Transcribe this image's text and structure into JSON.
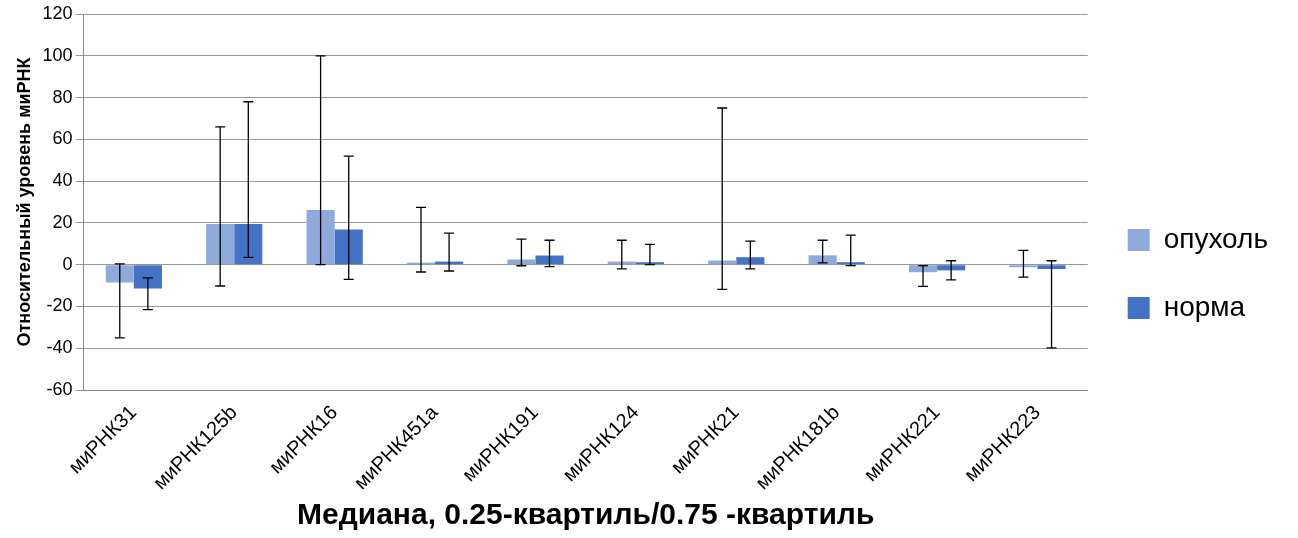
{
  "chart_data": {
    "type": "bar",
    "xlabel": "Медиана, 0.25-квартиль/0.75 -квартиль",
    "ylabel": "Относительный уровень миРНК",
    "categories": [
      "миРНК31",
      "миРНК125b",
      "миРНК16",
      "миРНК451a",
      "миРНК191",
      "миРНК124",
      "миРНК21",
      "миРНК181b",
      "миРНК221",
      "миРНК223"
    ],
    "series": [
      {
        "name": "опухоль",
        "color": "#8eaadb",
        "values": [
          -8.5,
          19.5,
          26.2,
          1.0,
          2.5,
          1.5,
          2.0,
          4.5,
          -3.6,
          -1.2
        ],
        "errors": [
          [
            -35,
            0.4
          ],
          [
            -10.2,
            66
          ],
          [
            0,
            100
          ],
          [
            -3.5,
            27.4
          ],
          [
            -0.5,
            12.2
          ],
          [
            -2,
            11.7
          ],
          [
            -11.8,
            75
          ],
          [
            0.9,
            11.7
          ],
          [
            -10.4,
            -0.4
          ],
          [
            -5.9,
            6.9
          ]
        ]
      },
      {
        "name": "норма",
        "color": "#4472c4",
        "values": [
          -11.4,
          19.5,
          16.8,
          1.5,
          4.4,
          1.2,
          3.6,
          1.2,
          -2.7,
          -2.0
        ],
        "errors": [
          [
            -21.5,
            -6.3
          ],
          [
            3.5,
            78
          ],
          [
            -7,
            52
          ],
          [
            -3,
            15.1
          ],
          [
            -0.9,
            11.7
          ],
          [
            0,
            9.7
          ],
          [
            -2,
            11.3
          ],
          [
            -0.4,
            14.2
          ],
          [
            -7.3,
            1.9
          ],
          [
            -39.8,
            1.9
          ]
        ]
      }
    ],
    "ylim": [
      -60,
      120
    ],
    "yticks": [
      -60,
      -40,
      -20,
      0,
      20,
      40,
      60,
      80,
      100,
      120
    ],
    "grid": "y",
    "legend": "right"
  }
}
